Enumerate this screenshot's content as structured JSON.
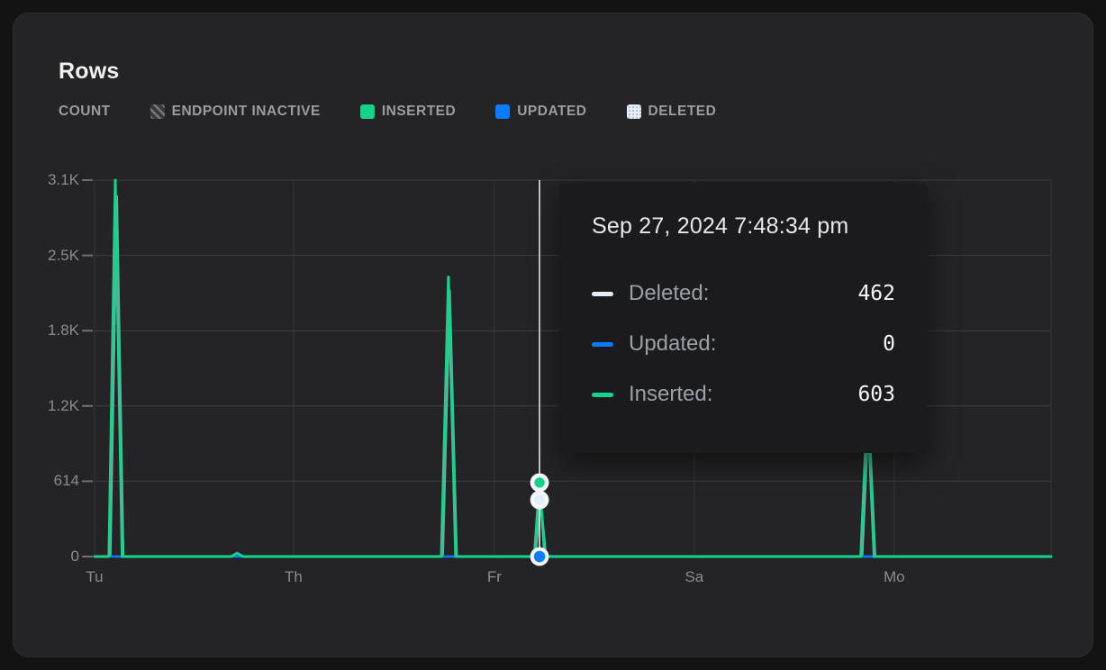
{
  "card": {
    "title": "Rows"
  },
  "legend": {
    "count_label": "COUNT",
    "items": [
      {
        "label": "ENDPOINT INACTIVE",
        "swatch": "hatched",
        "color": "#5a5a5c"
      },
      {
        "label": "INSERTED",
        "swatch": "solid",
        "color": "#14d38a"
      },
      {
        "label": "UPDATED",
        "swatch": "solid",
        "color": "#0b7cfb"
      },
      {
        "label": "DELETED",
        "swatch": "dotted",
        "color": "#e6eef7"
      }
    ]
  },
  "tooltip": {
    "title": "Sep 27, 2024 7:48:34 pm",
    "rows": [
      {
        "label": "Deleted:",
        "value": "462",
        "color": "#e3edf7"
      },
      {
        "label": "Updated:",
        "value": "0",
        "color": "#0b7cfb"
      },
      {
        "label": "Inserted:",
        "value": "603",
        "color": "#14d38a"
      }
    ]
  },
  "chart_data": {
    "type": "line",
    "title": "Rows",
    "ylabel": "COUNT",
    "ylim": [
      0,
      3070
    ],
    "grid": true,
    "y_ticks": [
      {
        "label": "0",
        "value": 0
      },
      {
        "label": "614",
        "value": 614
      },
      {
        "label": "1.2K",
        "value": 1228
      },
      {
        "label": "1.8K",
        "value": 1842
      },
      {
        "label": "2.5K",
        "value": 2456
      },
      {
        "label": "3.1K",
        "value": 3070
      }
    ],
    "x_ticks": [
      {
        "label": "Tu",
        "x": 0.0
      },
      {
        "label": "Th",
        "x": 0.208
      },
      {
        "label": "Fr",
        "x": 0.418
      },
      {
        "label": "Sa",
        "x": 0.627
      },
      {
        "label": "Mo",
        "x": 0.836
      }
    ],
    "series": [
      {
        "name": "deleted",
        "color": "#a9b9c6",
        "opacity": 0.8,
        "width": 2,
        "points": [
          [
            0,
            0
          ],
          [
            0.0168,
            0
          ],
          [
            0.0235,
            2940
          ],
          [
            0.0303,
            0
          ],
          [
            0.3643,
            0
          ],
          [
            0.3716,
            2170
          ],
          [
            0.3789,
            0
          ],
          [
            0.461,
            0
          ],
          [
            0.4666,
            462
          ],
          [
            0.4722,
            0
          ],
          [
            0.8028,
            0
          ],
          [
            0.8096,
            1180
          ],
          [
            0.8164,
            0
          ],
          [
            1,
            0
          ]
        ]
      },
      {
        "name": "updated",
        "color": "#0b7cfb",
        "opacity": 1,
        "width": 2.5,
        "points": [
          [
            0,
            0
          ],
          [
            1,
            0
          ]
        ]
      },
      {
        "name": "inserted",
        "color": "#14d38a",
        "opacity": 1,
        "width": 3,
        "points": [
          [
            0,
            0
          ],
          [
            0.015,
            0
          ],
          [
            0.0217,
            3070
          ],
          [
            0.0288,
            0
          ],
          [
            0.143,
            0
          ],
          [
            0.149,
            28
          ],
          [
            0.155,
            0
          ],
          [
            0.3625,
            0
          ],
          [
            0.37,
            2280
          ],
          [
            0.3775,
            0
          ],
          [
            0.4597,
            0
          ],
          [
            0.4652,
            603
          ],
          [
            0.4707,
            0
          ],
          [
            0.801,
            0
          ],
          [
            0.808,
            1250
          ],
          [
            0.815,
            0
          ],
          [
            1,
            0
          ]
        ]
      }
    ],
    "hover": {
      "x_norm": 0.4652,
      "timestamp": "Sep 27, 2024 7:48:34 pm",
      "points": [
        {
          "name": "inserted",
          "value": 603,
          "color": "#14d38a"
        },
        {
          "name": "deleted",
          "value": 462,
          "color": "#e3edf7"
        },
        {
          "name": "updated",
          "value": 0,
          "color": "#0b7cfb"
        }
      ]
    }
  }
}
